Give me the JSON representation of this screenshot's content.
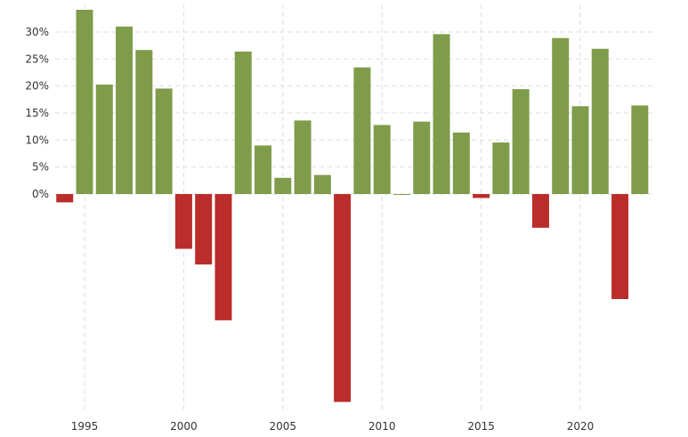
{
  "chart_data": {
    "type": "bar",
    "title": "",
    "xlabel": "",
    "ylabel": "",
    "categories": [
      1994,
      1995,
      1996,
      1997,
      1998,
      1999,
      2000,
      2001,
      2002,
      2003,
      2004,
      2005,
      2006,
      2007,
      2008,
      2009,
      2010,
      2011,
      2012,
      2013,
      2014,
      2015,
      2016,
      2017,
      2018,
      2019,
      2020,
      2021,
      2022,
      2023
    ],
    "values": [
      -1.54,
      34.11,
      20.26,
      31.01,
      26.67,
      19.53,
      -10.14,
      -13.04,
      -23.37,
      26.38,
      8.99,
      3.0,
      13.62,
      3.53,
      -38.49,
      23.45,
      12.78,
      0.0,
      13.41,
      29.6,
      11.39,
      -0.73,
      9.54,
      19.42,
      -6.24,
      28.88,
      16.26,
      26.89,
      -19.44,
      16.4
    ],
    "ylim": [
      -40.2,
      35.1
    ],
    "xlim": [
      1993.4,
      1994.0
    ],
    "y_ticks": [
      0,
      5,
      10,
      15,
      20,
      25,
      30
    ],
    "y_tick_labels": [
      "0%",
      "5%",
      "10%",
      "15%",
      "20%",
      "25%",
      "30%"
    ],
    "x_ticks": [
      1995,
      2000,
      2005,
      2010,
      2015,
      2020
    ],
    "x_tick_labels": [
      "1995",
      "2000",
      "2005",
      "2010",
      "2015",
      "2020"
    ],
    "grid": true,
    "colors": {
      "positive": "#7f9c4a",
      "negative": "#bb2d2a",
      "grid": "#dddddd"
    }
  }
}
